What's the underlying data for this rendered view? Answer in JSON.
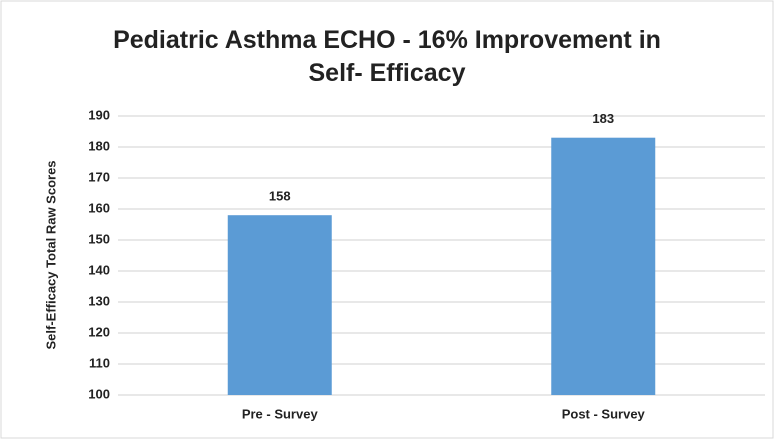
{
  "chart_data": {
    "type": "bar",
    "title": "Pediatric Asthma ECHO - 16% Improvement in Self- Efficacy",
    "y_axis_label": "Self-Efficacy  Total Raw Scores",
    "categories": [
      "Pre - Survey",
      "Post - Survey"
    ],
    "values": [
      158,
      183
    ],
    "color": "#5b9bd5",
    "ylim": [
      100,
      190
    ],
    "yticks": [
      100,
      110,
      120,
      130,
      140,
      150,
      160,
      170,
      180,
      190
    ],
    "grid": true
  }
}
